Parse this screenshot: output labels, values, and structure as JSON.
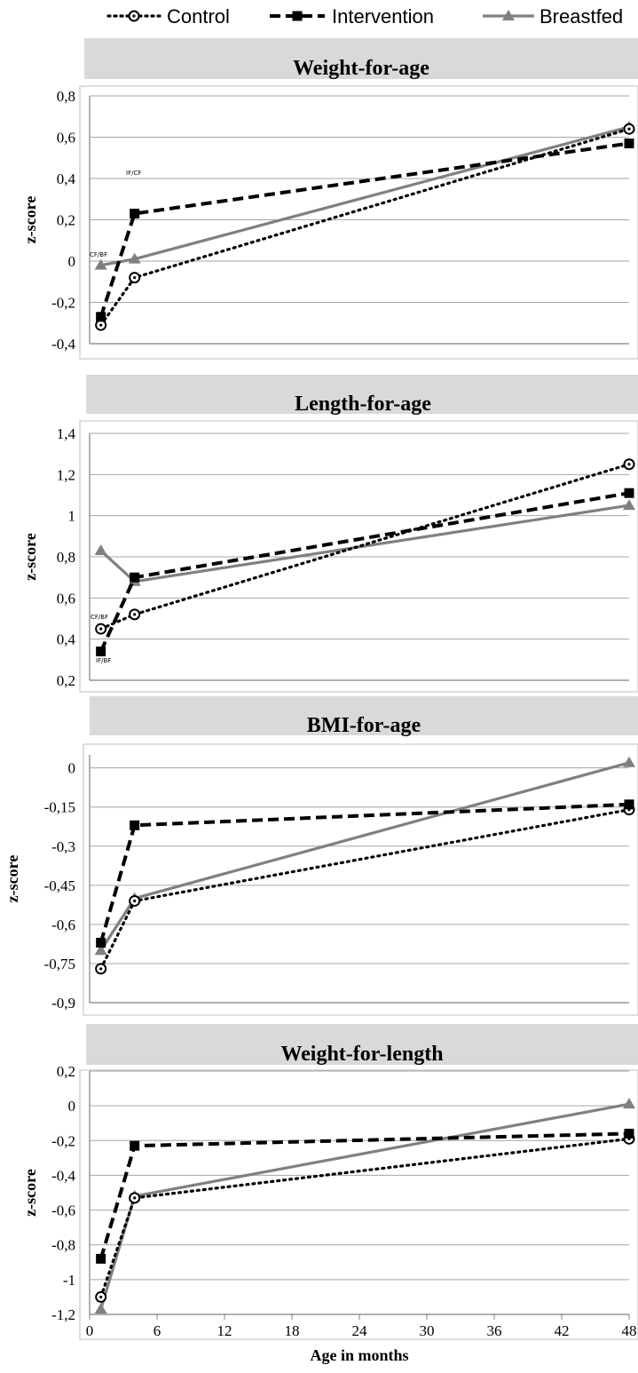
{
  "legend": [
    {
      "name": "Control",
      "color": "#000000",
      "style": "dotted",
      "marker": "circle-open"
    },
    {
      "name": "Intervention",
      "color": "#000000",
      "style": "dashed",
      "marker": "square"
    },
    {
      "name": "Breastfed",
      "color": "#808080",
      "style": "solid",
      "marker": "triangle"
    }
  ],
  "colors": {
    "title_band": "#d9d9d9",
    "grid": "#a6a6a6",
    "axis": "#808080"
  },
  "chart_data": [
    {
      "type": "line",
      "title": "Weight-for-age",
      "ylabel": "z-score",
      "xlabel": "",
      "x": [
        1,
        4,
        48
      ],
      "ylim": [
        -0.4,
        0.8
      ],
      "yticks": [
        "-0,4",
        "-0,2",
        "0",
        "0,2",
        "0,4",
        "0,6",
        "0,8"
      ],
      "xticks": [],
      "series": [
        {
          "name": "Control",
          "values": [
            -0.31,
            -0.08,
            0.64
          ]
        },
        {
          "name": "Intervention",
          "values": [
            -0.27,
            0.23,
            0.57
          ]
        },
        {
          "name": "Breastfed",
          "values": [
            -0.02,
            0.01,
            0.65
          ]
        }
      ],
      "annotations": [
        "IF/CF",
        "CF/BF"
      ]
    },
    {
      "type": "line",
      "title": "Length-for-age",
      "ylabel": "z-score",
      "xlabel": "",
      "x": [
        1,
        4,
        48
      ],
      "ylim": [
        0.2,
        1.4
      ],
      "yticks": [
        "0,2",
        "0,4",
        "0,6",
        "0,8",
        "1",
        "1,2",
        "1,4"
      ],
      "xticks": [],
      "series": [
        {
          "name": "Control",
          "values": [
            0.45,
            0.52,
            1.25
          ]
        },
        {
          "name": "Intervention",
          "values": [
            0.34,
            0.7,
            1.11
          ]
        },
        {
          "name": "Breastfed",
          "values": [
            0.83,
            0.68,
            1.05
          ]
        }
      ],
      "annotations": [
        "CF/BF",
        "IF/BF"
      ]
    },
    {
      "type": "line",
      "title": "BMI-for-age",
      "ylabel": "z-score",
      "xlabel": "",
      "x": [
        1,
        4,
        48
      ],
      "ylim": [
        -0.9,
        0.05
      ],
      "yticks": [
        "-0,9",
        "-0,75",
        "-0,6",
        "-0,45",
        "-0,3",
        "-0,15",
        "0"
      ],
      "xticks": [],
      "series": [
        {
          "name": "Control",
          "values": [
            -0.77,
            -0.51,
            -0.16
          ]
        },
        {
          "name": "Intervention",
          "values": [
            -0.67,
            -0.22,
            -0.14
          ]
        },
        {
          "name": "Breastfed",
          "values": [
            -0.7,
            -0.5,
            0.02
          ]
        }
      ],
      "annotations": []
    },
    {
      "type": "line",
      "title": "Weight-for-length",
      "ylabel": "z-score",
      "xlabel": "Age in months",
      "x": [
        1,
        4,
        48
      ],
      "ylim": [
        -1.2,
        0.2
      ],
      "yticks": [
        "-1,2",
        "-1",
        "-0,8",
        "-0,6",
        "-0,4",
        "-0,2",
        "0",
        "0,2"
      ],
      "xticks": [
        "0",
        "6",
        "12",
        "18",
        "24",
        "30",
        "36",
        "42",
        "48"
      ],
      "series": [
        {
          "name": "Control",
          "values": [
            -1.1,
            -0.53,
            -0.19
          ]
        },
        {
          "name": "Intervention",
          "values": [
            -0.88,
            -0.23,
            -0.16
          ]
        },
        {
          "name": "Breastfed",
          "values": [
            -1.17,
            -0.52,
            0.01
          ]
        }
      ],
      "annotations": []
    }
  ]
}
